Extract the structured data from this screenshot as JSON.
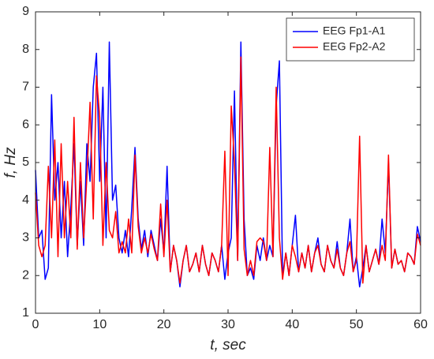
{
  "chart_data": {
    "type": "line",
    "xlabel": "t, sec",
    "ylabel": "f, Hz",
    "xlim": [
      0,
      60
    ],
    "ylim": [
      1,
      9
    ],
    "xticks": [
      0,
      10,
      20,
      30,
      40,
      50,
      60
    ],
    "yticks": [
      1,
      2,
      3,
      4,
      5,
      6,
      7,
      8,
      9
    ],
    "legend": "upper right",
    "x": [
      0,
      0.5,
      1,
      1.5,
      2,
      2.5,
      3,
      3.5,
      4,
      4.5,
      5,
      5.5,
      6,
      6.5,
      7,
      7.5,
      8,
      8.5,
      9,
      9.5,
      10,
      10.5,
      11,
      11.5,
      12,
      12.5,
      13,
      13.5,
      14,
      14.5,
      15,
      15.5,
      16,
      16.5,
      17,
      17.5,
      18,
      18.5,
      19,
      19.5,
      20,
      20.5,
      21,
      21.5,
      22,
      22.5,
      23,
      23.5,
      24,
      24.5,
      25,
      25.5,
      26,
      26.5,
      27,
      27.5,
      28,
      28.5,
      29,
      29.5,
      30,
      30.5,
      31,
      31.5,
      32,
      32.5,
      33,
      33.5,
      34,
      34.5,
      35,
      35.5,
      36,
      36.5,
      37,
      37.5,
      38,
      38.5,
      39,
      39.5,
      40,
      40.5,
      41,
      41.5,
      42,
      42.5,
      43,
      43.5,
      44,
      44.5,
      45,
      45.5,
      46,
      46.5,
      47,
      47.5,
      48,
      48.5,
      49,
      49.5,
      50,
      50.5,
      51,
      51.5,
      52,
      52.5,
      53,
      53.5,
      54,
      54.5,
      55,
      55.5,
      56,
      56.5,
      57,
      57.5,
      58,
      58.5,
      59,
      59.5,
      60
    ],
    "series": [
      {
        "name": "EEG Fp1-A1",
        "color": "#0000ff",
        "values": [
          4.8,
          3.0,
          3.2,
          1.9,
          2.2,
          6.8,
          4.0,
          5.0,
          3.0,
          4.5,
          2.5,
          3.8,
          5.5,
          2.8,
          4.5,
          2.8,
          5.5,
          4.5,
          7.0,
          7.9,
          4.5,
          7.0,
          3.0,
          8.2,
          4.0,
          4.4,
          3.0,
          2.6,
          3.2,
          2.5,
          3.8,
          5.4,
          3.5,
          2.7,
          3.2,
          2.5,
          3.2,
          2.8,
          2.4,
          3.5,
          2.6,
          4.9,
          2.1,
          2.8,
          2.4,
          1.7,
          2.4,
          2.8,
          2.1,
          2.3,
          2.6,
          2.1,
          2.8,
          2.3,
          2.0,
          2.6,
          2.4,
          2.1,
          2.8,
          1.9,
          2.6,
          3.0,
          6.9,
          2.4,
          8.2,
          3.5,
          2.0,
          2.2,
          1.9,
          2.8,
          2.4,
          3.0,
          2.4,
          2.8,
          2.5,
          6.5,
          7.7,
          2.0,
          2.6,
          2.0,
          2.8,
          3.6,
          2.1,
          2.6,
          2.2,
          2.8,
          2.1,
          2.6,
          3.0,
          2.3,
          2.1,
          2.8,
          2.4,
          2.2,
          2.9,
          2.2,
          2.0,
          2.6,
          3.5,
          2.1,
          2.5,
          1.7,
          2.2,
          2.8,
          2.1,
          2.4,
          2.7,
          2.3,
          3.5,
          2.6,
          5.0,
          2.2,
          2.7,
          2.3,
          2.4,
          2.1,
          2.6,
          2.5,
          2.3,
          3.3,
          2.9
        ]
      },
      {
        "name": "EEG Fp2-A2",
        "color": "#ff0000",
        "values": [
          4.2,
          2.8,
          2.5,
          2.8,
          4.9,
          3.0,
          5.6,
          2.5,
          5.5,
          3.0,
          4.5,
          3.0,
          6.2,
          2.7,
          5.0,
          3.0,
          4.6,
          6.6,
          3.5,
          7.3,
          6.2,
          2.8,
          5.0,
          3.2,
          3.0,
          3.7,
          2.6,
          2.9,
          2.6,
          3.5,
          2.6,
          5.2,
          3.3,
          2.6,
          3.0,
          2.6,
          3.1,
          2.7,
          2.4,
          3.9,
          2.5,
          4.0,
          2.1,
          2.8,
          2.4,
          1.8,
          2.4,
          2.8,
          2.1,
          2.3,
          2.6,
          2.1,
          2.8,
          2.3,
          2.0,
          2.6,
          2.4,
          2.1,
          2.8,
          5.3,
          2.0,
          6.5,
          5.0,
          2.4,
          7.8,
          2.7,
          2.0,
          2.4,
          2.0,
          2.9,
          3.0,
          2.9,
          2.4,
          5.4,
          2.5,
          7.0,
          3.0,
          1.9,
          2.6,
          2.0,
          2.8,
          2.5,
          2.1,
          2.6,
          2.2,
          2.8,
          2.1,
          2.6,
          2.8,
          2.3,
          2.1,
          2.8,
          2.4,
          2.2,
          2.7,
          2.2,
          2.0,
          2.6,
          2.9,
          2.1,
          2.4,
          5.7,
          1.8,
          2.8,
          2.1,
          2.4,
          2.7,
          2.3,
          2.8,
          2.4,
          5.2,
          2.2,
          2.7,
          2.3,
          2.4,
          2.1,
          2.6,
          2.5,
          2.3,
          3.1,
          2.8
        ]
      }
    ]
  }
}
